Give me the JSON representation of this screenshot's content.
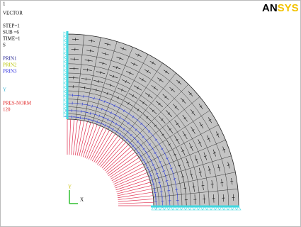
{
  "window_number": "1",
  "plot_type": "VECTOR",
  "step_info": [
    "STEP=1",
    "SUB =6",
    "TIME=1",
    "S"
  ],
  "vector_items": [
    {
      "label": "PRIN1",
      "color": "#1a1a8c"
    },
    {
      "label": "PRIN2",
      "color": "#b8c400"
    },
    {
      "label": "PRIN3",
      "color": "#3030e0"
    }
  ],
  "symbol_label": "Y",
  "pressure_label": "PRES-NORM",
  "pressure_value": 120,
  "logo": {
    "left": "AN",
    "right": "SYS"
  },
  "triad": {
    "y": "Y",
    "x": "X"
  }
}
